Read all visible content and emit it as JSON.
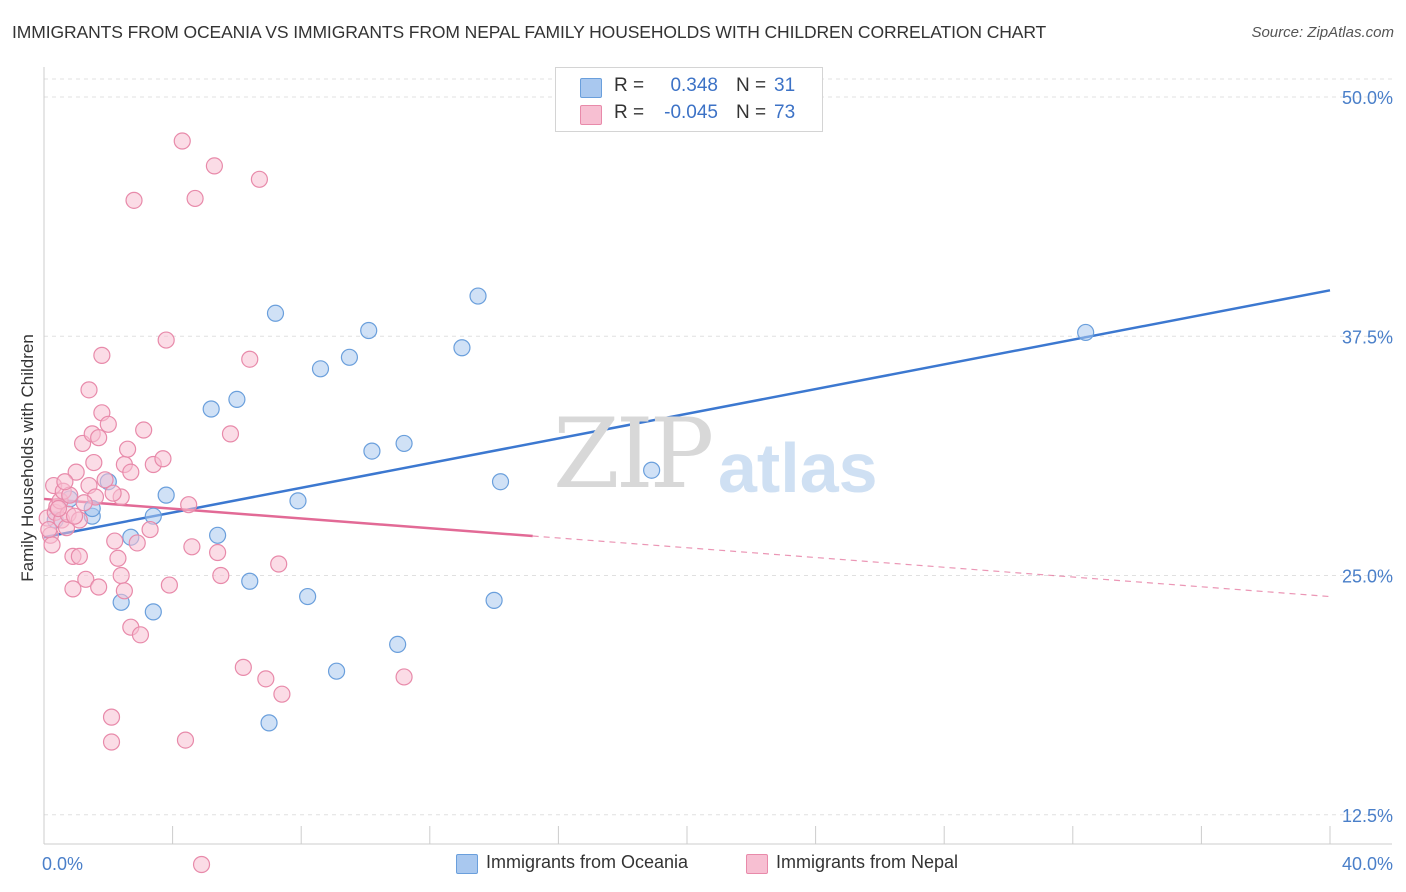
{
  "title": "IMMIGRANTS FROM OCEANIA VS IMMIGRANTS FROM NEPAL FAMILY HOUSEHOLDS WITH CHILDREN CORRELATION CHART",
  "source": "Source: ZipAtlas.com",
  "watermark": {
    "zip": "ZIP",
    "atlas": "atlas"
  },
  "stats": [
    {
      "r_label": "R =",
      "r_value": "0.348",
      "n_label": "N =",
      "n_value": "31",
      "color": "#a9c8ef",
      "border": "#6a9fdc"
    },
    {
      "r_label": "R =",
      "r_value": "-0.045",
      "n_label": "N =",
      "n_value": "73",
      "color": "#f7bfd2",
      "border": "#e88aaa"
    }
  ],
  "legend": [
    {
      "label": "Immigrants from Oceania",
      "color": "#a9c8ef",
      "border": "#6a9fdc"
    },
    {
      "label": "Immigrants from Nepal",
      "color": "#f7bfd2",
      "border": "#e88aaa"
    }
  ],
  "chart_data": {
    "type": "scatter",
    "title": "IMMIGRANTS FROM OCEANIA VS IMMIGRANTS FROM NEPAL FAMILY HOUSEHOLDS WITH CHILDREN CORRELATION CHART",
    "xlabel": "",
    "ylabel": "Family Households with Children",
    "xlim": [
      0,
      40
    ],
    "ylim": [
      0,
      52
    ],
    "x_ticks": [
      "0.0%",
      "40.0%"
    ],
    "y_ticks": [
      {
        "value": 12.5,
        "label": "12.5%"
      },
      {
        "value": 25.0,
        "label": "25.0%"
      },
      {
        "value": 37.5,
        "label": "37.5%"
      },
      {
        "value": 50.0,
        "label": "50.0%"
      }
    ],
    "grid": true,
    "legend_position": "bottom",
    "series": [
      {
        "name": "Immigrants from Oceania",
        "color": "#a9c8ef",
        "stroke": "#6a9fdc",
        "line_color": "#3c78d0",
        "trend": {
          "x0": 0.0,
          "y0": 27.0,
          "x1": 40.0,
          "y1": 39.9,
          "solid_to": 40.0
        },
        "points": [
          [
            0.35,
            27.9
          ],
          [
            0.8,
            29.0
          ],
          [
            1.5,
            28.1
          ],
          [
            2.0,
            29.9
          ],
          [
            2.4,
            23.6
          ],
          [
            3.4,
            28.1
          ],
          [
            3.4,
            23.1
          ],
          [
            3.8,
            29.2
          ],
          [
            5.2,
            33.7
          ],
          [
            5.4,
            27.1
          ],
          [
            6.0,
            34.2
          ],
          [
            6.4,
            24.7
          ],
          [
            7.0,
            17.3
          ],
          [
            7.2,
            38.7
          ],
          [
            7.9,
            28.9
          ],
          [
            8.2,
            23.9
          ],
          [
            8.6,
            35.8
          ],
          [
            9.1,
            20.0
          ],
          [
            9.5,
            36.4
          ],
          [
            10.1,
            37.8
          ],
          [
            10.2,
            31.5
          ],
          [
            11.0,
            21.4
          ],
          [
            11.2,
            31.9
          ],
          [
            13.0,
            36.9
          ],
          [
            14.2,
            29.9
          ],
          [
            13.5,
            39.6
          ],
          [
            14.0,
            23.7
          ],
          [
            18.9,
            30.5
          ],
          [
            32.4,
            37.7
          ],
          [
            2.7,
            27.0
          ],
          [
            1.5,
            28.5
          ]
        ]
      },
      {
        "name": "Immigrants from Nepal",
        "color": "#f7bfd2",
        "stroke": "#e88aaa",
        "line_color": "#e26a96",
        "trend": {
          "x0": 0.0,
          "y0": 29.0,
          "x1": 40.0,
          "y1": 23.9,
          "solid_to": 15.2
        },
        "points": [
          [
            0.1,
            28.0
          ],
          [
            0.2,
            27.1
          ],
          [
            0.25,
            26.6
          ],
          [
            0.3,
            29.7
          ],
          [
            0.35,
            28.3
          ],
          [
            0.4,
            28.6
          ],
          [
            0.5,
            28.9
          ],
          [
            0.55,
            27.9
          ],
          [
            0.6,
            29.4
          ],
          [
            0.7,
            27.5
          ],
          [
            0.75,
            28.2
          ],
          [
            0.8,
            29.2
          ],
          [
            0.9,
            26.0
          ],
          [
            0.9,
            24.3
          ],
          [
            1.0,
            30.4
          ],
          [
            1.1,
            27.9
          ],
          [
            1.1,
            26.0
          ],
          [
            1.2,
            31.9
          ],
          [
            1.3,
            24.8
          ],
          [
            1.4,
            29.7
          ],
          [
            1.4,
            34.7
          ],
          [
            1.5,
            32.4
          ],
          [
            1.6,
            29.1
          ],
          [
            1.7,
            24.4
          ],
          [
            1.7,
            32.2
          ],
          [
            1.8,
            36.5
          ],
          [
            1.8,
            33.5
          ],
          [
            1.9,
            30.0
          ],
          [
            2.0,
            32.9
          ],
          [
            2.1,
            17.6
          ],
          [
            2.1,
            16.3
          ],
          [
            2.2,
            26.8
          ],
          [
            2.3,
            25.9
          ],
          [
            2.4,
            29.1
          ],
          [
            2.4,
            25.0
          ],
          [
            2.5,
            24.2
          ],
          [
            2.5,
            30.8
          ],
          [
            2.6,
            31.6
          ],
          [
            2.7,
            30.4
          ],
          [
            2.7,
            22.3
          ],
          [
            2.8,
            44.6
          ],
          [
            2.9,
            26.7
          ],
          [
            3.0,
            21.9
          ],
          [
            3.1,
            32.6
          ],
          [
            3.3,
            27.4
          ],
          [
            3.4,
            30.8
          ],
          [
            3.7,
            31.1
          ],
          [
            3.8,
            37.3
          ],
          [
            3.9,
            24.5
          ],
          [
            4.3,
            47.7
          ],
          [
            4.4,
            16.4
          ],
          [
            4.5,
            28.7
          ],
          [
            4.6,
            26.5
          ],
          [
            4.7,
            44.7
          ],
          [
            4.9,
            9.9
          ],
          [
            5.3,
            46.4
          ],
          [
            5.4,
            26.2
          ],
          [
            5.5,
            25.0
          ],
          [
            5.8,
            32.4
          ],
          [
            6.2,
            20.2
          ],
          [
            6.4,
            36.3
          ],
          [
            6.7,
            45.7
          ],
          [
            6.9,
            19.6
          ],
          [
            7.3,
            25.6
          ],
          [
            7.4,
            18.8
          ],
          [
            11.2,
            19.7
          ],
          [
            0.15,
            27.4
          ],
          [
            0.45,
            28.5
          ],
          [
            0.65,
            29.9
          ],
          [
            1.25,
            28.8
          ],
          [
            1.55,
            30.9
          ],
          [
            2.15,
            29.3
          ],
          [
            0.95,
            28.1
          ]
        ]
      }
    ]
  }
}
